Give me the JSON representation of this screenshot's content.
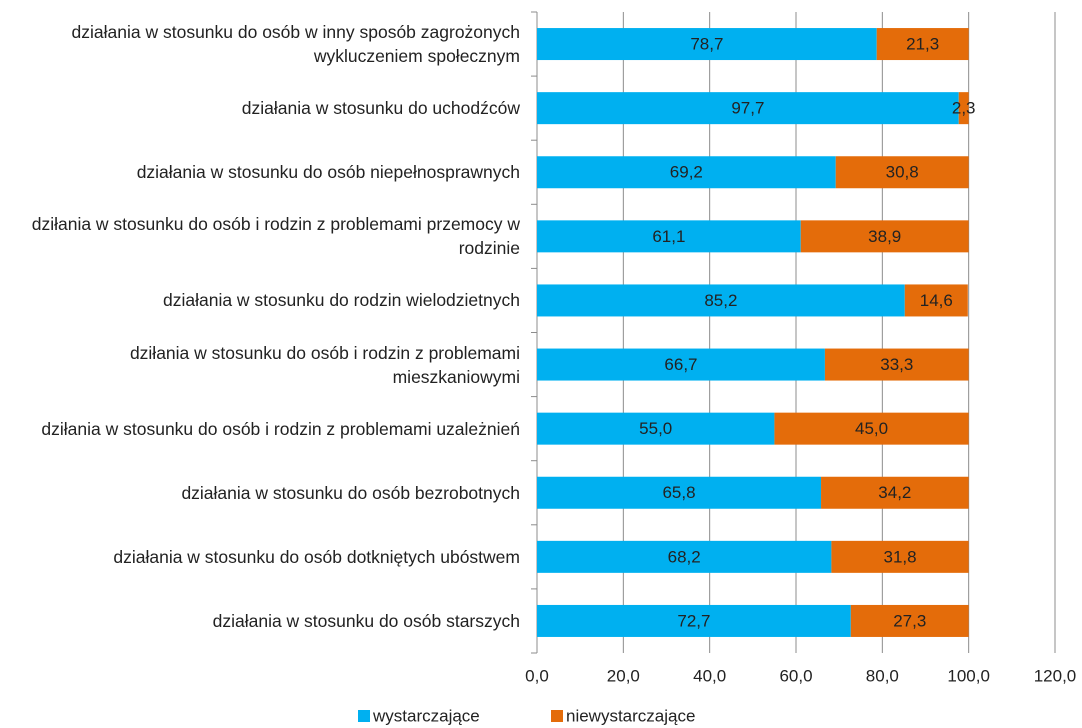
{
  "chart_data": {
    "type": "stacked-barh",
    "categories": [
      "działania w stosunku do osób w inny sposób zagrożonych wykluczeniem społecznym",
      "działania w stosunku do uchodźców",
      "działania w stosunku do osób niepełnosprawnych",
      "dziłania w stosunku do osób i rodzin z problemami przemocy w rodzinie",
      "działania w stosunku do rodzin wielodzietnych",
      "dziłania w stosunku do osób i rodzin z problemami mieszkaniowymi",
      "dziłania w stosunku do osób i rodzin z problemami uzależnień",
      "działania w stosunku do osób bezrobotnych",
      "działania w stosunku do osób dotkniętych ubóstwem",
      "działania w stosunku do osób starszych"
    ],
    "series": [
      {
        "name": "wystarczające",
        "color": "#00b0f0",
        "values": [
          78.7,
          97.7,
          69.2,
          61.1,
          85.2,
          66.7,
          55.0,
          65.8,
          68.2,
          72.7
        ],
        "value_labels": [
          "78,7",
          "97,7",
          "69,2",
          "61,1",
          "85,2",
          "66,7",
          "55,0",
          "65,8",
          "68,2",
          "72,7"
        ]
      },
      {
        "name": "niewystarczające",
        "color": "#e46c0a",
        "values": [
          21.3,
          2.3,
          30.8,
          38.9,
          14.6,
          33.3,
          45.0,
          34.2,
          31.8,
          27.3
        ],
        "value_labels": [
          "21,3",
          "2,3",
          "30,8",
          "38,9",
          "14,6",
          "33,3",
          "45,0",
          "34,2",
          "31,8",
          "27,3"
        ]
      }
    ],
    "xlim": [
      0,
      120
    ],
    "xticks": [
      {
        "value": 0,
        "label": "0,0"
      },
      {
        "value": 20,
        "label": "20,0"
      },
      {
        "value": 40,
        "label": "40,0"
      },
      {
        "value": 60,
        "label": "60,0"
      },
      {
        "value": 80,
        "label": "80,0"
      },
      {
        "value": 100,
        "label": "100,0"
      },
      {
        "value": 120,
        "label": "120,0"
      }
    ],
    "grid": true,
    "legend": "bottom"
  }
}
